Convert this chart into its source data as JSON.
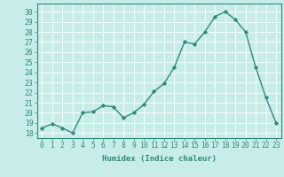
{
  "x": [
    0,
    1,
    2,
    3,
    4,
    5,
    6,
    7,
    8,
    9,
    10,
    11,
    12,
    13,
    14,
    15,
    16,
    17,
    18,
    19,
    20,
    21,
    22,
    23
  ],
  "y": [
    18.5,
    18.9,
    18.5,
    18.0,
    20.0,
    20.1,
    20.7,
    20.6,
    19.5,
    20.0,
    20.8,
    22.1,
    22.9,
    24.5,
    27.0,
    26.8,
    28.0,
    29.5,
    30.0,
    29.2,
    28.0,
    24.5,
    21.5,
    19.0
  ],
  "line_color": "#2e8b7a",
  "marker": "D",
  "marker_size": 2.2,
  "bg_color": "#c8ede8",
  "grid_color": "#ffffff",
  "xlabel": "Humidex (Indice chaleur)",
  "ylim": [
    17.5,
    30.8
  ],
  "xlim": [
    -0.5,
    23.5
  ],
  "yticks": [
    18,
    19,
    20,
    21,
    22,
    23,
    24,
    25,
    26,
    27,
    28,
    29,
    30
  ],
  "xticks": [
    0,
    1,
    2,
    3,
    4,
    5,
    6,
    7,
    8,
    9,
    10,
    11,
    12,
    13,
    14,
    15,
    16,
    17,
    18,
    19,
    20,
    21,
    22,
    23
  ],
  "tick_color": "#2e8b7a",
  "font_color": "#2e8b7a",
  "xlabel_fontsize": 6.5,
  "tick_fontsize": 5.8,
  "linewidth": 1.0
}
